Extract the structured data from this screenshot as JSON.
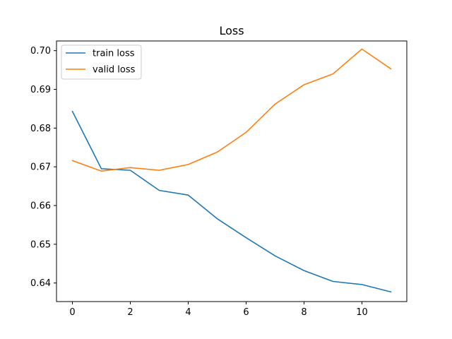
{
  "chart_data": {
    "type": "line",
    "title": "Loss",
    "xlabel": "",
    "ylabel": "",
    "x": [
      0,
      1,
      2,
      3,
      4,
      5,
      6,
      7,
      8,
      9,
      10,
      11
    ],
    "xlim": [
      -0.55,
      11.55
    ],
    "ylim": [
      0.6352,
      0.7025
    ],
    "xticks": [
      0,
      2,
      4,
      6,
      8,
      10
    ],
    "yticks": [
      0.64,
      0.65,
      0.66,
      0.67,
      0.68,
      0.69,
      0.7
    ],
    "ytick_labels": [
      "0.64",
      "0.65",
      "0.66",
      "0.67",
      "0.68",
      "0.69",
      "0.70"
    ],
    "grid": false,
    "legend": "top-left",
    "series": [
      {
        "name": "train loss",
        "color": "#1f77b4",
        "values": [
          0.6843,
          0.6695,
          0.6691,
          0.6639,
          0.6627,
          0.6566,
          0.6517,
          0.647,
          0.6432,
          0.6404,
          0.6396,
          0.6377
        ]
      },
      {
        "name": "valid loss",
        "color": "#ff7f0e",
        "values": [
          0.6716,
          0.6689,
          0.6698,
          0.6691,
          0.6706,
          0.6738,
          0.6789,
          0.6862,
          0.6912,
          0.694,
          0.7004,
          0.6953
        ]
      }
    ]
  }
}
